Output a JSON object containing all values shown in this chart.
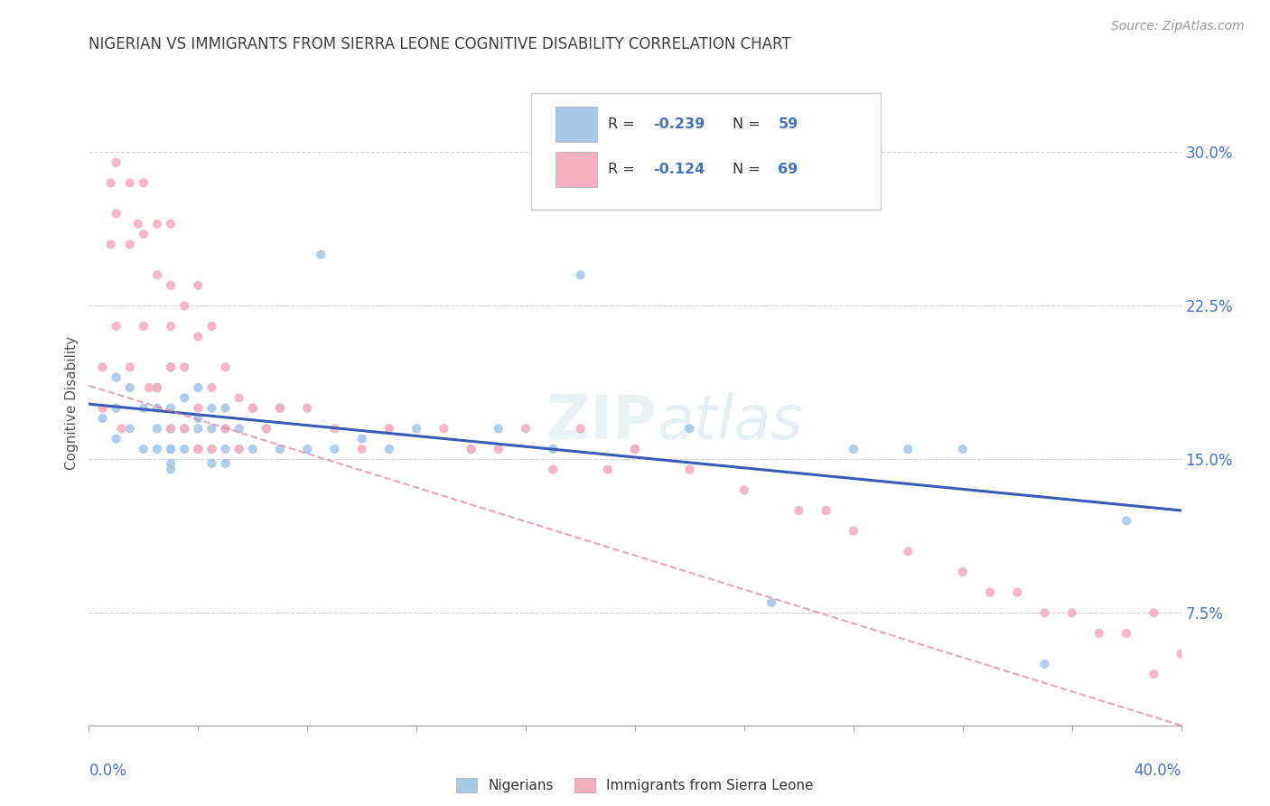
{
  "title": "NIGERIAN VS IMMIGRANTS FROM SIERRA LEONE COGNITIVE DISABILITY CORRELATION CHART",
  "source": "Source: ZipAtlas.com",
  "ylabel": "Cognitive Disability",
  "yticks": [
    "7.5%",
    "15.0%",
    "22.5%",
    "30.0%"
  ],
  "ytick_values": [
    0.075,
    0.15,
    0.225,
    0.3
  ],
  "xlim": [
    0.0,
    0.4
  ],
  "ylim": [
    0.02,
    0.335
  ],
  "blue_color": "#a8c8e8",
  "pink_color": "#f4b0c0",
  "blue_line_color": "#3a5bb5",
  "pink_line_color": "#e08090",
  "axis_label_color": "#4472c4",
  "nigerians_x": [
    0.005,
    0.01,
    0.01,
    0.01,
    0.015,
    0.015,
    0.02,
    0.02,
    0.025,
    0.025,
    0.025,
    0.025,
    0.03,
    0.03,
    0.03,
    0.03,
    0.03,
    0.03,
    0.03,
    0.035,
    0.035,
    0.035,
    0.04,
    0.04,
    0.04,
    0.04,
    0.045,
    0.045,
    0.045,
    0.045,
    0.05,
    0.05,
    0.05,
    0.05,
    0.055,
    0.055,
    0.06,
    0.06,
    0.065,
    0.07,
    0.07,
    0.08,
    0.085,
    0.09,
    0.1,
    0.11,
    0.12,
    0.14,
    0.15,
    0.17,
    0.18,
    0.2,
    0.22,
    0.25,
    0.28,
    0.3,
    0.32,
    0.35,
    0.38
  ],
  "nigerians_y": [
    0.17,
    0.19,
    0.175,
    0.16,
    0.185,
    0.165,
    0.175,
    0.155,
    0.185,
    0.175,
    0.165,
    0.155,
    0.195,
    0.175,
    0.165,
    0.155,
    0.155,
    0.148,
    0.145,
    0.18,
    0.165,
    0.155,
    0.185,
    0.17,
    0.165,
    0.155,
    0.175,
    0.165,
    0.155,
    0.148,
    0.175,
    0.165,
    0.155,
    0.148,
    0.165,
    0.155,
    0.175,
    0.155,
    0.165,
    0.175,
    0.155,
    0.155,
    0.25,
    0.155,
    0.16,
    0.155,
    0.165,
    0.155,
    0.165,
    0.155,
    0.24,
    0.155,
    0.165,
    0.08,
    0.155,
    0.155,
    0.155,
    0.05,
    0.12
  ],
  "sierraleone_x": [
    0.005,
    0.005,
    0.008,
    0.008,
    0.01,
    0.01,
    0.01,
    0.012,
    0.015,
    0.015,
    0.015,
    0.018,
    0.02,
    0.02,
    0.02,
    0.022,
    0.025,
    0.025,
    0.025,
    0.03,
    0.03,
    0.03,
    0.03,
    0.03,
    0.035,
    0.035,
    0.035,
    0.04,
    0.04,
    0.04,
    0.04,
    0.045,
    0.045,
    0.045,
    0.05,
    0.05,
    0.055,
    0.055,
    0.06,
    0.065,
    0.07,
    0.08,
    0.09,
    0.1,
    0.11,
    0.13,
    0.14,
    0.15,
    0.16,
    0.17,
    0.18,
    0.19,
    0.2,
    0.22,
    0.24,
    0.26,
    0.27,
    0.28,
    0.3,
    0.32,
    0.33,
    0.34,
    0.35,
    0.36,
    0.37,
    0.38,
    0.39,
    0.39,
    0.4
  ],
  "sierraleone_y": [
    0.195,
    0.175,
    0.285,
    0.255,
    0.295,
    0.27,
    0.215,
    0.165,
    0.285,
    0.255,
    0.195,
    0.265,
    0.285,
    0.26,
    0.215,
    0.185,
    0.265,
    0.24,
    0.185,
    0.265,
    0.235,
    0.215,
    0.195,
    0.165,
    0.225,
    0.195,
    0.165,
    0.235,
    0.21,
    0.175,
    0.155,
    0.215,
    0.185,
    0.155,
    0.195,
    0.165,
    0.18,
    0.155,
    0.175,
    0.165,
    0.175,
    0.175,
    0.165,
    0.155,
    0.165,
    0.165,
    0.155,
    0.155,
    0.165,
    0.145,
    0.165,
    0.145,
    0.155,
    0.145,
    0.135,
    0.125,
    0.125,
    0.115,
    0.105,
    0.095,
    0.085,
    0.085,
    0.075,
    0.075,
    0.065,
    0.065,
    0.075,
    0.045,
    0.055
  ]
}
